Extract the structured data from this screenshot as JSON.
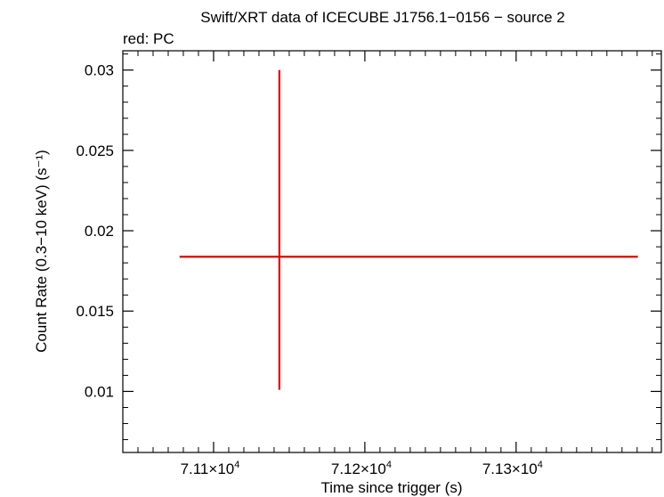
{
  "chart_data": {
    "type": "scatter",
    "title": "Swift/XRT data of ICECUBE J1756.1−0156 − source 2",
    "subtitle": "red: PC",
    "xlabel": "Time since trigger (s)",
    "ylabel": "Count Rate (0.3−10 keV) (s⁻¹)",
    "xlim": [
      71040,
      71396
    ],
    "ylim": [
      0.0062,
      0.0312
    ],
    "grid": false,
    "x_ticks": [
      {
        "value": 71100,
        "mantissa": "7.11×10",
        "exp": "4"
      },
      {
        "value": 71200,
        "mantissa": "7.12×10",
        "exp": "4"
      },
      {
        "value": 71300,
        "mantissa": "7.13×10",
        "exp": "4"
      }
    ],
    "y_ticks": [
      {
        "value": 0.01,
        "label": "0.01"
      },
      {
        "value": 0.015,
        "label": "0.015"
      },
      {
        "value": 0.02,
        "label": "0.02"
      },
      {
        "value": 0.025,
        "label": "0.025"
      },
      {
        "value": 0.03,
        "label": "0.03"
      }
    ],
    "series": [
      {
        "color": "#e00000",
        "points": [
          {
            "x": 71143.5,
            "x_low": 71077.5,
            "x_high": 71380.5,
            "y": 0.01838,
            "y_low": 0.0101,
            "y_high": 0.03
          }
        ]
      }
    ]
  }
}
